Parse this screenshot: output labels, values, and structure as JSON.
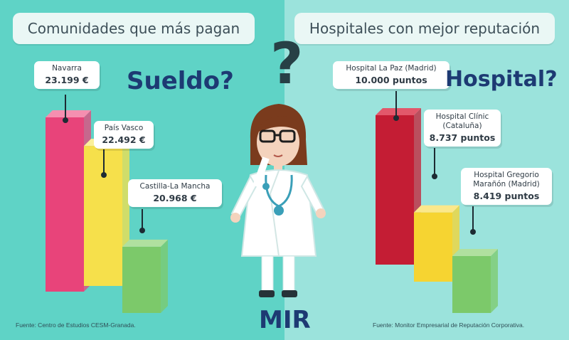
{
  "left_panel": {
    "title": "Comunidades que más pagan",
    "source": "Fuente: Centro de Estudios CESM-Granada.",
    "question": "Sueldo?"
  },
  "right_panel": {
    "title": "Hospitales con mejor reputación",
    "source": "Fuente: Monitor Empresarial de Reputación Corporativa.",
    "question": "Hospital?"
  },
  "center": {
    "question_mark": "?",
    "label": "MIR",
    "figure_icon": "female-doctor-icon"
  },
  "colors": {
    "background": "#5fd3c6",
    "bar_1": "#e8447a",
    "bar_2": "#f6e04b",
    "bar_3": "#7cc96a",
    "bar_r1": "#c41d34",
    "question_text": "#1d3a73"
  },
  "chart_data": [
    {
      "type": "bar",
      "title": "Comunidades que más pagan",
      "categories": [
        "Navarra",
        "País Vasco",
        "Castilla-La Mancha"
      ],
      "values": [
        23199,
        22492,
        20968
      ],
      "value_labels": [
        "23.199 €",
        "22.492 €",
        "20.968 €"
      ]
    },
    {
      "type": "bar",
      "title": "Hospitales con mejor reputación",
      "categories": [
        "Hospital La Paz (Madrid)",
        "Hospital Clínic\n(Cataluña)",
        "Hospital Gregorio\nMarañón (Madrid)"
      ],
      "values": [
        10000,
        8737,
        8419
      ],
      "value_labels": [
        "10.000 puntos",
        "8.737 puntos",
        "8.419 puntos"
      ]
    }
  ]
}
